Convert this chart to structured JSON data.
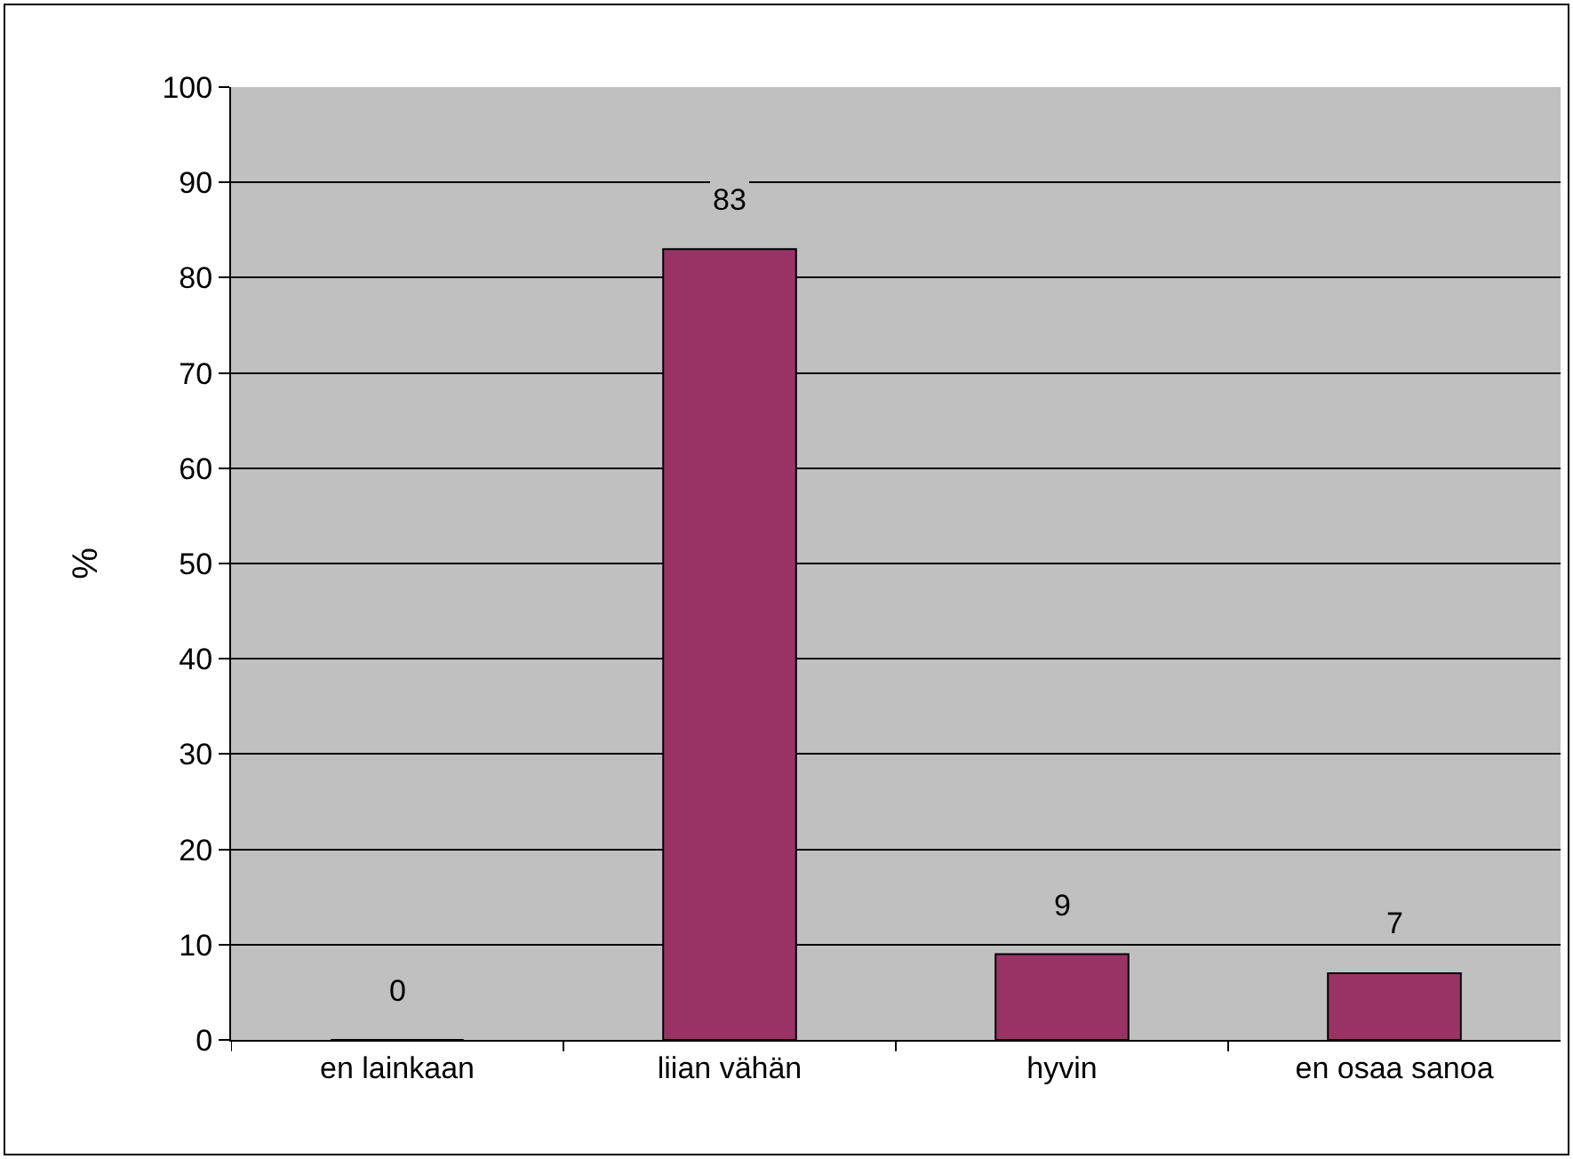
{
  "chart_data": {
    "type": "bar",
    "ylabel": "%",
    "categories": [
      "en lainkaan",
      "liian vähän",
      "hyvin",
      "en osaa sanoa"
    ],
    "values": [
      0,
      83,
      9,
      7
    ],
    "color": "#993366",
    "ylim": [
      0,
      100
    ],
    "yticks": [
      0,
      10,
      20,
      30,
      40,
      50,
      60,
      70,
      80,
      90,
      100
    ],
    "grid": "y",
    "data_labels": true
  }
}
